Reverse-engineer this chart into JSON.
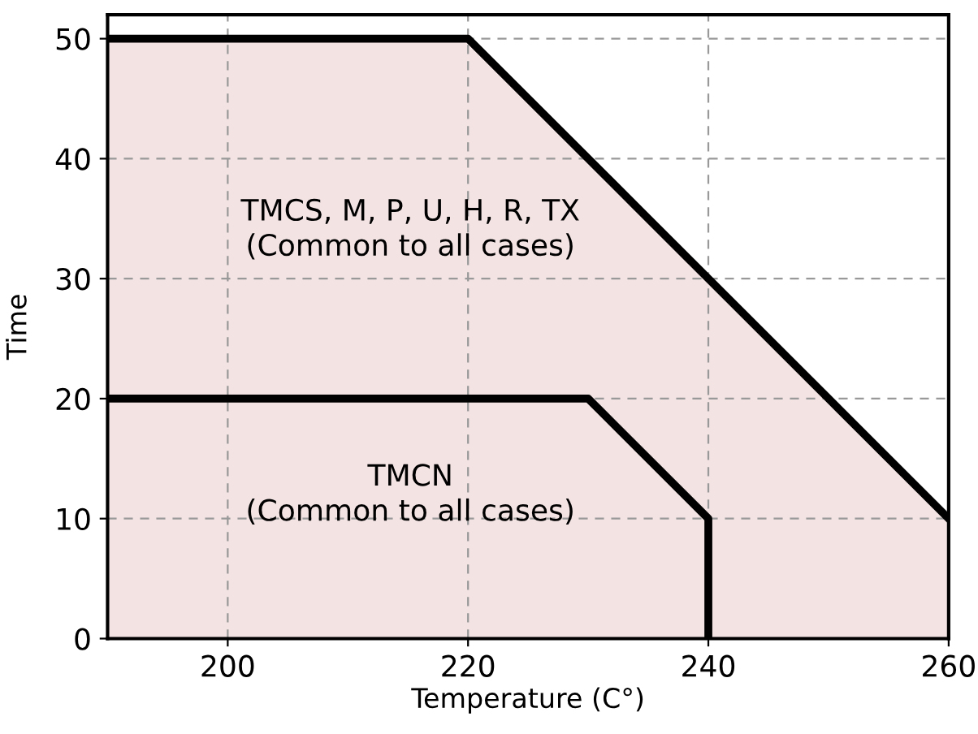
{
  "chart_data": {
    "type": "area",
    "xlabel": "Temperature (C°)",
    "ylabel": "Time",
    "series": [
      {
        "color": "#f3e3e3",
        "x": [
          190,
          220,
          260
        ],
        "values": [
          50,
          50,
          10
        ]
      },
      {
        "type": "line",
        "color": "#000000",
        "x": [
          190,
          230,
          240,
          240
        ],
        "values": [
          20,
          20,
          10,
          0
        ]
      }
    ],
    "annotations": [
      "TMCS, M, P, U, H, R, TX\n(Common to all cases)",
      "TMCN\n(Common to all cases)"
    ],
    "xlim": [
      190,
      260
    ],
    "ylim": [
      0,
      52
    ],
    "xticks": [
      200,
      220,
      240,
      260
    ],
    "yticks": [
      0,
      10,
      20,
      30,
      40,
      50
    ],
    "grid": true,
    "line_style": "solid"
  }
}
